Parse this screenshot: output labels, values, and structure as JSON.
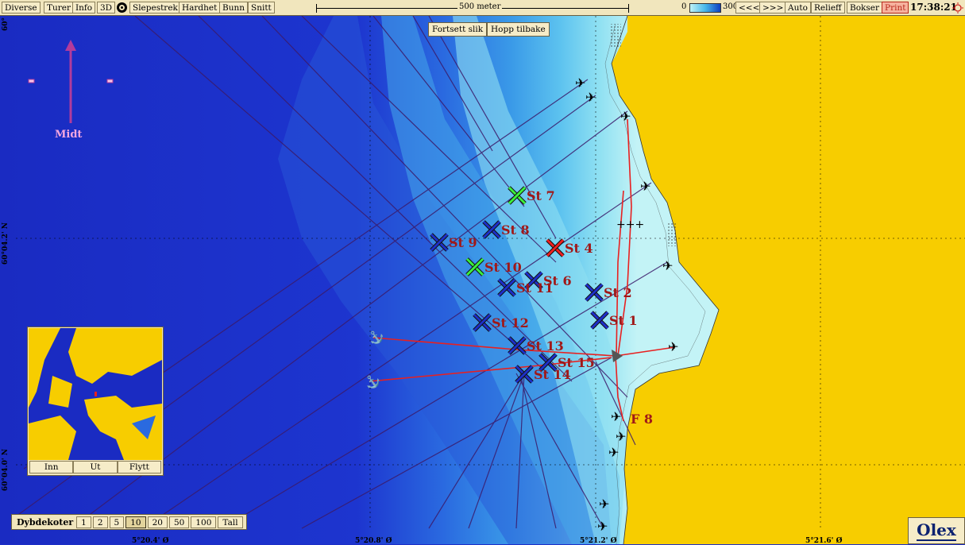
{
  "toolbar": {
    "menu": [
      "Diverse",
      "Turer",
      "Info",
      "3D",
      "Slepestrek",
      "Hardhet",
      "Bunn",
      "Snitt"
    ],
    "scale_label": "500 meter",
    "depth_min": "0",
    "depth_max": "300",
    "nav_prev": "<<<",
    "nav_next": ">>>",
    "auto": "Auto",
    "relieff": "Relieff",
    "bokser": "Bokser",
    "print": "Print",
    "time": "17:38:21"
  },
  "map_buttons": {
    "continue": "Fortsett slik",
    "back": "Hopp tilbake"
  },
  "compass": {
    "label": "Midt"
  },
  "stations": [
    {
      "label": "St 7",
      "color": "green"
    },
    {
      "label": "St 8",
      "color": "blue"
    },
    {
      "label": "St 9",
      "color": "blue"
    },
    {
      "label": "St 4",
      "color": "red"
    },
    {
      "label": "St 10",
      "color": "green"
    },
    {
      "label": "St 6",
      "color": "blue"
    },
    {
      "label": "St 11",
      "color": "blue"
    },
    {
      "label": "St 2",
      "color": "blue"
    },
    {
      "label": "St 1",
      "color": "blue"
    },
    {
      "label": "St 12",
      "color": "blue"
    },
    {
      "label": "St 13",
      "color": "blue"
    },
    {
      "label": "St 15",
      "color": "blue"
    },
    {
      "label": "St 14",
      "color": "blue"
    },
    {
      "label": "F 8",
      "color": "blue"
    }
  ],
  "inset": {
    "buttons": [
      "Inn",
      "Ut",
      "Flytt"
    ]
  },
  "depth_contours": {
    "label": "Dybdekoter",
    "options": [
      "1",
      "2",
      "5",
      "10",
      "20",
      "50",
      "100",
      "Tall"
    ],
    "selected": "10"
  },
  "coords": {
    "lon": [
      "5°20.4' Ø",
      "5°20.8' Ø",
      "5°21.2' Ø",
      "5°21.6' Ø"
    ],
    "lat": [
      "60°",
      "60°04.2' N",
      "60°04.0' N"
    ]
  },
  "brand": "Olex",
  "colors": {
    "land": "#f7cd00",
    "deep_sea": "#1d2fc8",
    "shallow": "#c8f5f7",
    "track": "#e82020",
    "toolbar": "#f1e6bd"
  }
}
